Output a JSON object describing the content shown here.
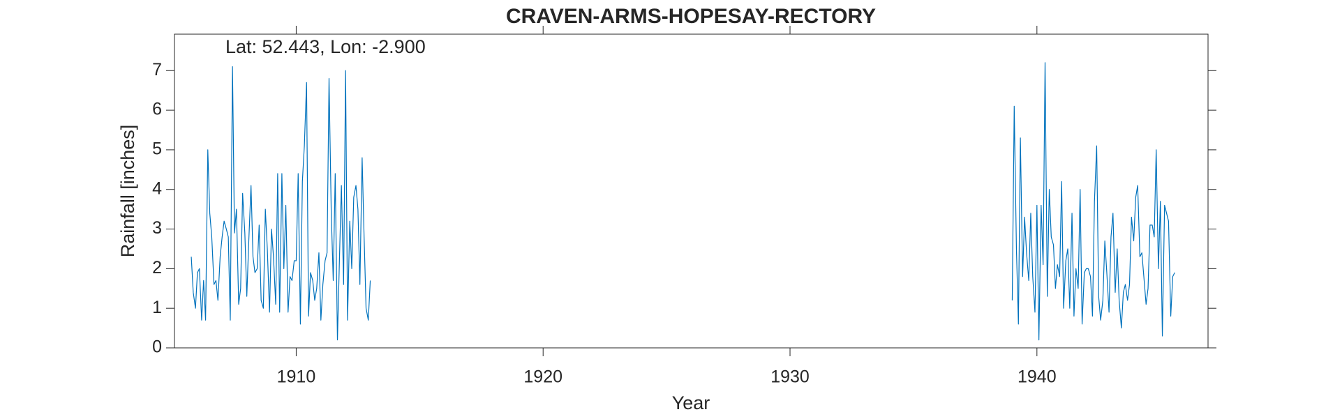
{
  "chart_data": {
    "type": "line",
    "title": "CRAVEN-ARMS-HOPESAY-RECTORY",
    "annotation": "Lat: 52.443, Lon: -2.900",
    "xlabel": "Year",
    "ylabel": "Rainfall [inches]",
    "x": [
      1905.75,
      1905.83,
      1905.92,
      1906.0,
      1906.08,
      1906.17,
      1906.25,
      1906.33,
      1906.42,
      1906.5,
      1906.58,
      1906.67,
      1906.75,
      1906.83,
      1906.92,
      1907.0,
      1907.08,
      1907.17,
      1907.25,
      1907.33,
      1907.42,
      1907.5,
      1907.58,
      1907.67,
      1907.75,
      1907.83,
      1907.92,
      1908.0,
      1908.08,
      1908.17,
      1908.25,
      1908.33,
      1908.42,
      1908.5,
      1908.58,
      1908.67,
      1908.75,
      1908.83,
      1908.92,
      1909.0,
      1909.08,
      1909.17,
      1909.25,
      1909.33,
      1909.42,
      1909.5,
      1909.58,
      1909.67,
      1909.75,
      1909.83,
      1909.92,
      1910.0,
      1910.08,
      1910.17,
      1910.25,
      1910.33,
      1910.42,
      1910.5,
      1910.58,
      1910.67,
      1910.75,
      1910.83,
      1910.92,
      1911.0,
      1911.08,
      1911.17,
      1911.25,
      1911.33,
      1911.42,
      1911.5,
      1911.58,
      1911.67,
      1911.75,
      1911.83,
      1911.92,
      1912.0,
      1912.08,
      1912.17,
      1912.25,
      1912.33,
      1912.42,
      1912.5,
      1912.58,
      1912.67,
      1912.75,
      1912.83,
      1912.92,
      1913.0,
      1926.0,
      1939.0,
      1939.08,
      1939.17,
      1939.25,
      1939.33,
      1939.42,
      1939.5,
      1939.58,
      1939.67,
      1939.75,
      1939.83,
      1939.92,
      1940.0,
      1940.08,
      1940.17,
      1940.25,
      1940.33,
      1940.42,
      1940.5,
      1940.58,
      1940.67,
      1940.75,
      1940.83,
      1940.92,
      1941.0,
      1941.08,
      1941.17,
      1941.25,
      1941.33,
      1941.42,
      1941.5,
      1941.58,
      1941.67,
      1941.75,
      1941.83,
      1941.92,
      1942.0,
      1942.08,
      1942.17,
      1942.25,
      1942.33,
      1942.42,
      1942.5,
      1942.58,
      1942.67,
      1942.75,
      1942.83,
      1942.92,
      1943.0,
      1943.08,
      1943.17,
      1943.25,
      1943.33,
      1943.42,
      1943.5,
      1943.58,
      1943.67,
      1943.75,
      1943.83,
      1943.92,
      1944.0,
      1944.08,
      1944.17,
      1944.25,
      1944.33,
      1944.42,
      1944.5,
      1944.58,
      1944.67,
      1944.75,
      1944.83,
      1944.92,
      1945.0,
      1945.08,
      1945.17,
      1945.25,
      1945.33,
      1945.42,
      1945.5,
      1945.58
    ],
    "series": [
      {
        "name": "Rainfall",
        "color": "#0072bd",
        "values": [
          2.3,
          1.4,
          1.0,
          1.9,
          2.0,
          0.7,
          1.7,
          0.7,
          5.0,
          3.4,
          2.8,
          1.6,
          1.7,
          1.2,
          2.3,
          2.8,
          3.2,
          3.0,
          2.8,
          0.7,
          7.1,
          2.9,
          3.5,
          1.1,
          1.5,
          3.9,
          2.9,
          1.3,
          2.7,
          4.1,
          2.3,
          1.9,
          2.0,
          3.1,
          1.2,
          1.0,
          3.5,
          2.5,
          0.9,
          3.0,
          2.3,
          1.1,
          4.4,
          0.9,
          4.4,
          2.0,
          3.6,
          0.9,
          1.8,
          1.7,
          2.2,
          2.2,
          4.4,
          0.6,
          4.2,
          5.1,
          6.7,
          0.8,
          1.9,
          1.7,
          1.2,
          1.5,
          2.4,
          0.7,
          1.6,
          2.2,
          2.4,
          6.8,
          3.4,
          1.7,
          4.4,
          0.2,
          2.2,
          4.1,
          1.6,
          7.0,
          0.7,
          3.2,
          2.0,
          3.8,
          4.1,
          3.5,
          1.6,
          4.8,
          2.8,
          1.0,
          0.7,
          1.7,
          null,
          1.2,
          6.1,
          2.5,
          0.6,
          5.3,
          1.8,
          3.3,
          2.4,
          1.7,
          3.4,
          1.8,
          0.9,
          3.6,
          0.2,
          3.6,
          2.1,
          7.2,
          1.3,
          4.0,
          2.8,
          2.6,
          1.5,
          2.1,
          1.8,
          4.2,
          1.0,
          2.2,
          2.5,
          1.0,
          3.4,
          0.8,
          2.0,
          1.5,
          4.0,
          0.6,
          1.9,
          2.0,
          2.0,
          1.8,
          0.8,
          3.7,
          5.1,
          1.3,
          0.7,
          1.2,
          2.7,
          1.9,
          0.9,
          2.8,
          3.4,
          1.4,
          2.5,
          1.2,
          0.5,
          1.4,
          1.6,
          1.2,
          1.6,
          3.3,
          2.7,
          3.8,
          4.1,
          2.3,
          2.4,
          1.8,
          1.1,
          1.5,
          3.1,
          3.1,
          2.8,
          5.0,
          2.0,
          3.7,
          0.3,
          3.6,
          3.4,
          3.2,
          0.8,
          1.8,
          1.9
        ]
      }
    ],
    "xlim": [
      1905.07,
      1946.93
    ],
    "ylim": [
      0,
      7.92
    ],
    "xticks": [
      1910,
      1920,
      1930,
      1940
    ],
    "yticks": [
      0,
      1,
      2,
      3,
      4,
      5,
      6,
      7
    ]
  }
}
